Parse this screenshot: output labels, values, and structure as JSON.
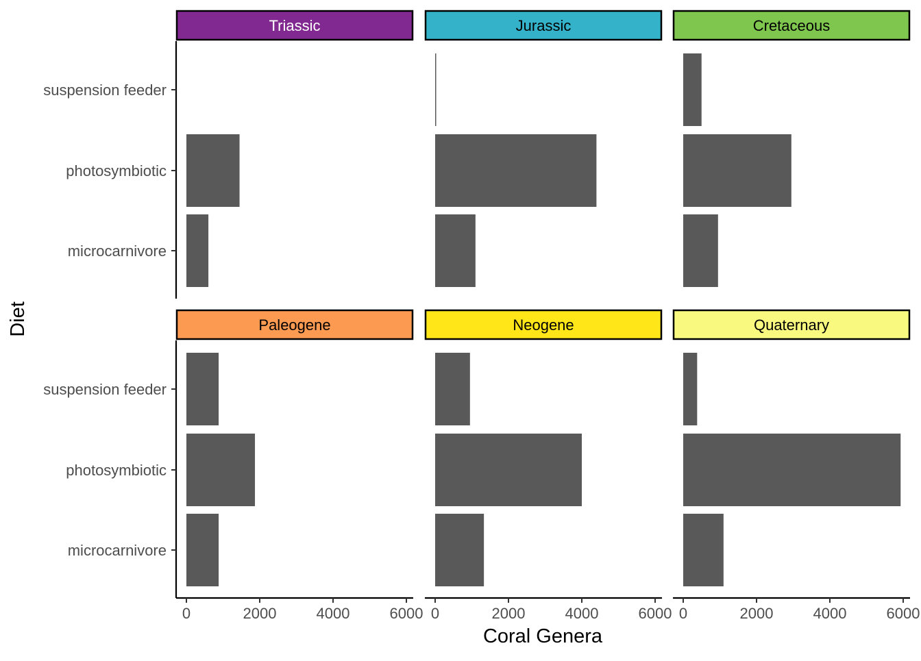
{
  "chart_data": {
    "type": "bar",
    "orientation": "horizontal",
    "xlabel": "Coral Genera",
    "ylabel": "Diet",
    "xlim": [
      0,
      6000
    ],
    "x_ticks": [
      0,
      2000,
      4000,
      6000
    ],
    "x_tick_labels": [
      "0",
      "2000",
      "4000",
      "6000"
    ],
    "categories": [
      "suspension feeder",
      "photosymbiotic",
      "microcarnivore"
    ],
    "grid": false,
    "legend": "none",
    "bar_color": "#595959",
    "facets": [
      {
        "name": "Triassic",
        "strip_color": "#812990",
        "strip_text_color": "#ffffff",
        "values": [
          0,
          1450,
          600
        ]
      },
      {
        "name": "Jurassic",
        "strip_color": "#34B2C9",
        "strip_text_color": "#000000",
        "values": [
          25,
          4400,
          1100
        ]
      },
      {
        "name": "Cretaceous",
        "strip_color": "#7FC64E",
        "strip_text_color": "#000000",
        "values": [
          500,
          2950,
          950
        ]
      },
      {
        "name": "Paleogene",
        "strip_color": "#FD9A52",
        "strip_text_color": "#000000",
        "values": [
          880,
          1870,
          880
        ]
      },
      {
        "name": "Neogene",
        "strip_color": "#FFE619",
        "strip_text_color": "#000000",
        "values": [
          950,
          4000,
          1330
        ]
      },
      {
        "name": "Quaternary",
        "strip_color": "#F9F97F",
        "strip_text_color": "#000000",
        "values": [
          380,
          5930,
          1100
        ]
      }
    ]
  }
}
